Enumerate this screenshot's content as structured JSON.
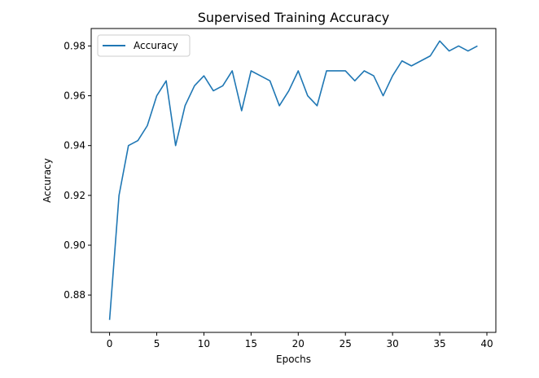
{
  "chart_data": {
    "type": "line",
    "title": "Supervised Training Accuracy",
    "xlabel": "Epochs",
    "ylabel": "Accuracy",
    "xlim": [
      -1.95,
      40.95
    ],
    "ylim": [
      0.865,
      0.987
    ],
    "xticks": [
      0,
      5,
      10,
      15,
      20,
      25,
      30,
      35,
      40
    ],
    "yticks": [
      0.88,
      0.9,
      0.92,
      0.94,
      0.96,
      0.98
    ],
    "xtick_labels": [
      "0",
      "5",
      "10",
      "15",
      "20",
      "25",
      "30",
      "35",
      "40"
    ],
    "ytick_labels": [
      "0.88",
      "0.90",
      "0.92",
      "0.94",
      "0.96",
      "0.98"
    ],
    "grid": false,
    "legend_position": "top-left",
    "series": [
      {
        "name": "Accuracy",
        "color": "#1f77b4",
        "x": [
          0,
          1,
          2,
          3,
          4,
          5,
          6,
          7,
          8,
          9,
          10,
          11,
          12,
          13,
          14,
          15,
          16,
          17,
          18,
          19,
          20,
          21,
          22,
          23,
          24,
          25,
          26,
          27,
          28,
          29,
          30,
          31,
          32,
          33,
          34,
          35,
          36,
          37,
          38,
          39
        ],
        "y": [
          0.87,
          0.92,
          0.94,
          0.942,
          0.948,
          0.96,
          0.966,
          0.94,
          0.956,
          0.964,
          0.968,
          0.962,
          0.964,
          0.97,
          0.954,
          0.97,
          0.968,
          0.966,
          0.956,
          0.962,
          0.97,
          0.96,
          0.956,
          0.97,
          0.97,
          0.97,
          0.966,
          0.97,
          0.968,
          0.96,
          0.968,
          0.974,
          0.972,
          0.974,
          0.976,
          0.982,
          0.978,
          0.98,
          0.978,
          0.98
        ]
      }
    ]
  }
}
